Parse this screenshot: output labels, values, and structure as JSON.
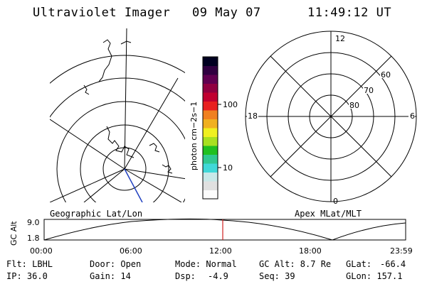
{
  "header": {
    "title": "Ultraviolet Imager",
    "date": "09 May 07",
    "time": "11:49:12 UT"
  },
  "colorbar": {
    "unit_label": "photon cm−2s−1",
    "tick_100": "100",
    "tick_10": "10",
    "colors": [
      "#fcfcfc",
      "#e0e0e0",
      "#c8e8e8",
      "#40d8d8",
      "#30c890",
      "#20c020",
      "#a8e020",
      "#f0f020",
      "#f0b020",
      "#f08020",
      "#e82020",
      "#c00030",
      "#900040",
      "#600050",
      "#300040",
      "#000020"
    ]
  },
  "labels": {
    "geo": "Geographic Lat/Lon",
    "apex": "Apex MLat/MLT"
  },
  "polar_plot": {
    "mlt_12": "12",
    "mlt_18": "18",
    "mlt_6": "6",
    "mlt_0": "0",
    "lat_60": "60",
    "lat_70": "70",
    "lat_80": "80"
  },
  "altitude_plot": {
    "ylabel": "GC Alt",
    "y_max": "9.0",
    "y_min": "1.8",
    "x_ticks": [
      "00:00",
      "06:00",
      "12:00",
      "18:00",
      "23:59"
    ],
    "current_marker_color": "#d02020"
  },
  "info": {
    "flt": "Flt: LBHL",
    "ip": "IP: 36.0",
    "door": "Door: Open",
    "gain": "Gain: 14",
    "mode": "Mode: Normal",
    "dsp": "Dsp:",
    "dsp_val": "-4.9",
    "gcalt": "GC Alt: 8.7 Re",
    "seq": "Seq: 39",
    "glat": "GLat:",
    "glat_val": "-66.4",
    "glon": "GLon: 157.1"
  }
}
